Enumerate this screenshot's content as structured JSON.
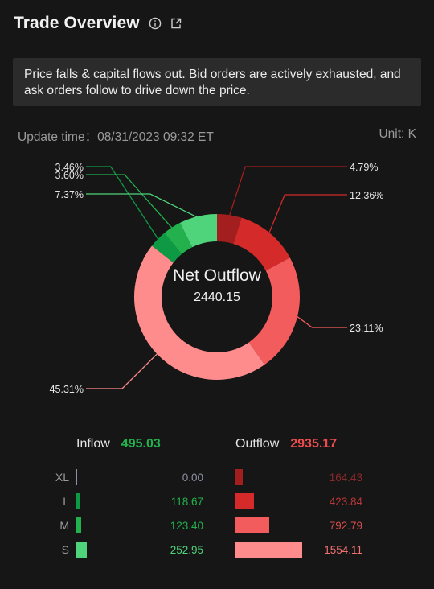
{
  "header": {
    "title": "Trade Overview",
    "icons": [
      "info-icon",
      "share-icon"
    ]
  },
  "summary": "Price falls & capital flows out. Bid orders are actively exhausted, and ask orders follow to drive down the price.",
  "update_time": "Update time：08/31/2023 09:32 ET",
  "unit": "Unit: K",
  "center": {
    "label": "Net Outflow",
    "value": "2440.15"
  },
  "colors": {
    "inflow_xl": "#8d8fa3",
    "inflow_l": "#0e9a44",
    "inflow_m": "#22b14c",
    "inflow_s": "#4fd37b",
    "outflow_xl": "#a31e1e",
    "outflow_l": "#d42a2a",
    "outflow_m": "#f25c5c",
    "outflow_s": "#ff8c8c"
  },
  "chart_data": {
    "type": "pie",
    "slices": [
      {
        "group": "inflow",
        "size": "L",
        "percent": 3.46,
        "label": "3.46%",
        "color": "#0e9a44"
      },
      {
        "group": "inflow",
        "size": "M",
        "percent": 3.6,
        "label": "3.60%",
        "color": "#22b14c"
      },
      {
        "group": "inflow",
        "size": "S",
        "percent": 7.37,
        "label": "7.37%",
        "color": "#4fd37b"
      },
      {
        "group": "outflow",
        "size": "XL",
        "percent": 4.79,
        "label": "4.79%",
        "color": "#a31e1e"
      },
      {
        "group": "outflow",
        "size": "L",
        "percent": 12.36,
        "label": "12.36%",
        "color": "#d42a2a"
      },
      {
        "group": "outflow",
        "size": "M",
        "percent": 23.11,
        "label": "23.11%",
        "color": "#f25c5c"
      },
      {
        "group": "outflow",
        "size": "S",
        "percent": 45.31,
        "label": "45.31%",
        "color": "#ff8c8c"
      }
    ]
  },
  "flows": {
    "inflow_label": "Inflow",
    "inflow_total": "495.03",
    "outflow_label": "Outflow",
    "outflow_total": "2935.17",
    "max_value": 1554.11,
    "rows": [
      {
        "size": "XL",
        "inflow": "0.00",
        "outflow": "164.43"
      },
      {
        "size": "L",
        "inflow": "118.67",
        "outflow": "423.84"
      },
      {
        "size": "M",
        "inflow": "123.40",
        "outflow": "792.79"
      },
      {
        "size": "S",
        "inflow": "252.95",
        "outflow": "1554.11"
      }
    ]
  }
}
